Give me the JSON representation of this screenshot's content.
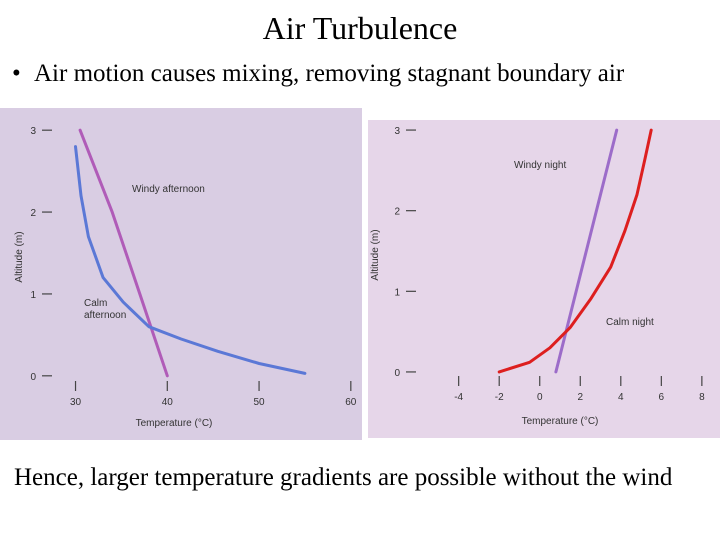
{
  "slide": {
    "title": "Air Turbulence",
    "bullet": "Air motion causes mixing, removing stagnant boundary air",
    "footer": "Hence, larger temperature gradients are possible without the wind"
  },
  "colors": {
    "left_panel_bg": "#d9cde3",
    "right_panel_bg": "#e6d6e9",
    "windy_line": "#b05cb8",
    "calm_afternoon": "#5b78d6",
    "calm_night": "#dd1f1f",
    "windy_night": "#9c6cc9"
  },
  "chart_data": [
    {
      "type": "line",
      "xlabel": "Temperature (°C)",
      "ylabel": "Altitude (m)",
      "xlim": [
        27,
        61
      ],
      "ylim": [
        -0.1,
        3.1
      ],
      "xticks": [
        "30",
        "40",
        "50",
        "60"
      ],
      "yticks": [
        "0",
        "1",
        "2",
        "3"
      ],
      "annotations": [
        "Windy afternoon",
        "Calm afternoon"
      ],
      "series": [
        {
          "name": "Windy afternoon",
          "x": [
            30.5,
            34.0,
            37.0,
            40.0
          ],
          "y": [
            3.0,
            2.0,
            1.0,
            0.0
          ]
        },
        {
          "name": "Calm afternoon",
          "x": [
            30.0,
            30.6,
            31.4,
            33.0,
            35.2,
            38.0,
            41.5,
            45.5,
            50.0,
            55.0
          ],
          "y": [
            2.8,
            2.2,
            1.7,
            1.2,
            0.9,
            0.6,
            0.45,
            0.3,
            0.15,
            0.03
          ]
        }
      ]
    },
    {
      "type": "line",
      "xlabel": "Temperature (°C)",
      "ylabel": "Altitude (m)",
      "xlim": [
        -6.5,
        8.5
      ],
      "ylim": [
        -0.1,
        3.1
      ],
      "xticks": [
        "-4",
        "-2",
        "0",
        "2",
        "4",
        "6",
        "8"
      ],
      "yticks": [
        "0",
        "1",
        "2",
        "3"
      ],
      "annotations": [
        "Windy night",
        "Calm night"
      ],
      "series": [
        {
          "name": "Windy night",
          "x": [
            0.8,
            3.8
          ],
          "y": [
            0.0,
            3.0
          ]
        },
        {
          "name": "Calm night",
          "x": [
            -2.0,
            -0.5,
            0.5,
            1.5,
            2.5,
            3.5,
            4.2,
            4.8,
            5.2,
            5.5
          ],
          "y": [
            0.0,
            0.12,
            0.3,
            0.55,
            0.9,
            1.3,
            1.75,
            2.2,
            2.65,
            3.0
          ]
        }
      ]
    }
  ]
}
